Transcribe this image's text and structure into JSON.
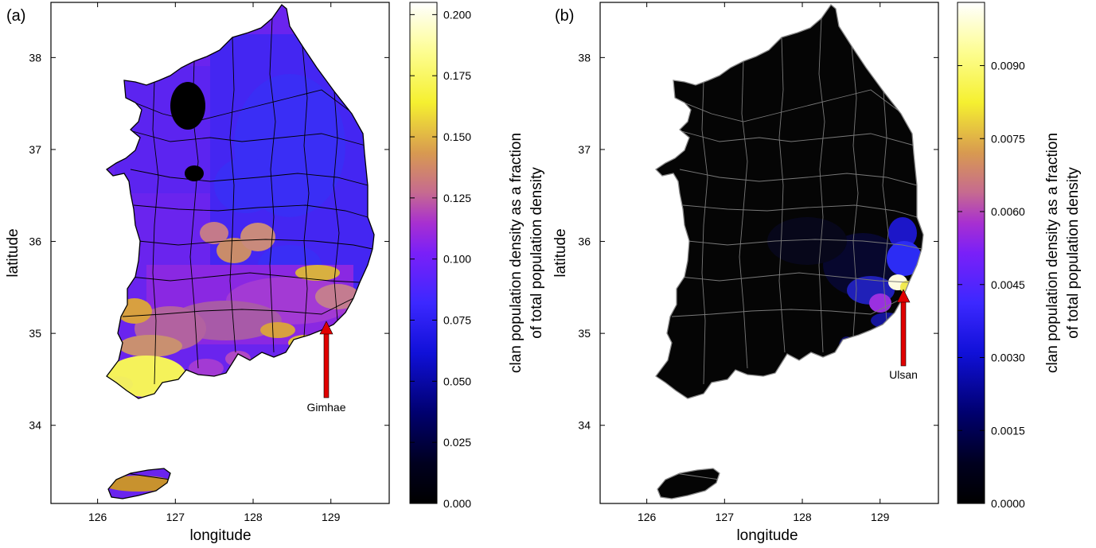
{
  "panels": [
    {
      "id": "a",
      "panel_label": "(a)",
      "xlabel": "longitude",
      "ylabel": "latitude",
      "x_ticks": [
        "126",
        "127",
        "128",
        "129"
      ],
      "y_ticks": [
        "34",
        "35",
        "36",
        "37",
        "38"
      ],
      "xlim": [
        125.4,
        129.75
      ],
      "ylim": [
        33.15,
        38.6
      ],
      "colorbar_ticks": [
        "0.000",
        "0.025",
        "0.050",
        "0.075",
        "0.100",
        "0.125",
        "0.150",
        "0.175",
        "0.200"
      ],
      "colorbar_range": [
        0,
        0.205
      ],
      "colorbar_label_line1": "clan population density as a fraction",
      "colorbar_label_line2": "of total population density",
      "colormap": "gnuplot2",
      "annotation": {
        "text": "Gimhae",
        "lon": 128.88,
        "lat": 35.23
      },
      "dominant_colors": [
        "#6a22f0",
        "#3b27f4",
        "#c98a7c",
        "#d8a040",
        "#f5f25a"
      ]
    },
    {
      "id": "b",
      "panel_label": "(b)",
      "xlabel": "longitude",
      "ylabel": "latitude",
      "x_ticks": [
        "126",
        "127",
        "128",
        "129"
      ],
      "y_ticks": [
        "34",
        "35",
        "36",
        "37",
        "38"
      ],
      "xlim": [
        125.4,
        129.75
      ],
      "ylim": [
        33.15,
        38.6
      ],
      "colorbar_ticks": [
        "0.0000",
        "0.0015",
        "0.0030",
        "0.0045",
        "0.0060",
        "0.0075",
        "0.0090"
      ],
      "colorbar_range": [
        0,
        0.0103
      ],
      "colorbar_label_line1": "clan population density as a fraction",
      "colorbar_label_line2": "of total population density",
      "colormap": "gnuplot2",
      "annotation": {
        "text": "Ulsan",
        "lon": 129.31,
        "lat": 35.54
      },
      "dominant_colors": [
        "#050505",
        "#1c16c8",
        "#2c2cf4",
        "#9a30e0",
        "#fffbe0"
      ]
    }
  ]
}
